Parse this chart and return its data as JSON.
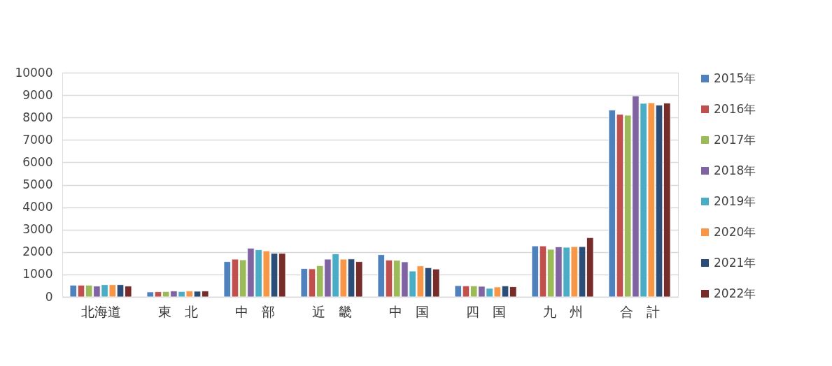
{
  "chart_data": {
    "type": "bar",
    "categories": [
      "北海道",
      "東　北",
      "中　部",
      "近　畿",
      "中　国",
      "四　国",
      "九　州",
      "合　計"
    ],
    "series": [
      {
        "name": "2015年",
        "color": "#4f81bd",
        "values": [
          520,
          220,
          1570,
          1260,
          1880,
          500,
          2270,
          8330
        ]
      },
      {
        "name": "2016年",
        "color": "#c0504d",
        "values": [
          520,
          230,
          1680,
          1250,
          1640,
          490,
          2270,
          8140
        ]
      },
      {
        "name": "2017年",
        "color": "#9bbb59",
        "values": [
          520,
          240,
          1650,
          1390,
          1630,
          490,
          2120,
          8100
        ]
      },
      {
        "name": "2018年",
        "color": "#8064a2",
        "values": [
          480,
          260,
          2170,
          1680,
          1560,
          470,
          2230,
          8960
        ]
      },
      {
        "name": "2019年",
        "color": "#4bacc6",
        "values": [
          540,
          240,
          2100,
          1920,
          1150,
          380,
          2210,
          8630
        ]
      },
      {
        "name": "2020年",
        "color": "#f79646",
        "values": [
          540,
          260,
          2050,
          1680,
          1380,
          440,
          2240,
          8650
        ]
      },
      {
        "name": "2021年",
        "color": "#2c4d75",
        "values": [
          540,
          250,
          1940,
          1690,
          1300,
          490,
          2240,
          8550
        ]
      },
      {
        "name": "2022年",
        "color": "#772c2a",
        "values": [
          480,
          260,
          1940,
          1570,
          1240,
          450,
          2640,
          8640
        ]
      }
    ],
    "ylim": [
      0,
      10000
    ],
    "yticks": [
      0,
      1000,
      2000,
      3000,
      4000,
      5000,
      6000,
      7000,
      8000,
      9000,
      10000
    ],
    "grid": "y",
    "legend": "right"
  }
}
